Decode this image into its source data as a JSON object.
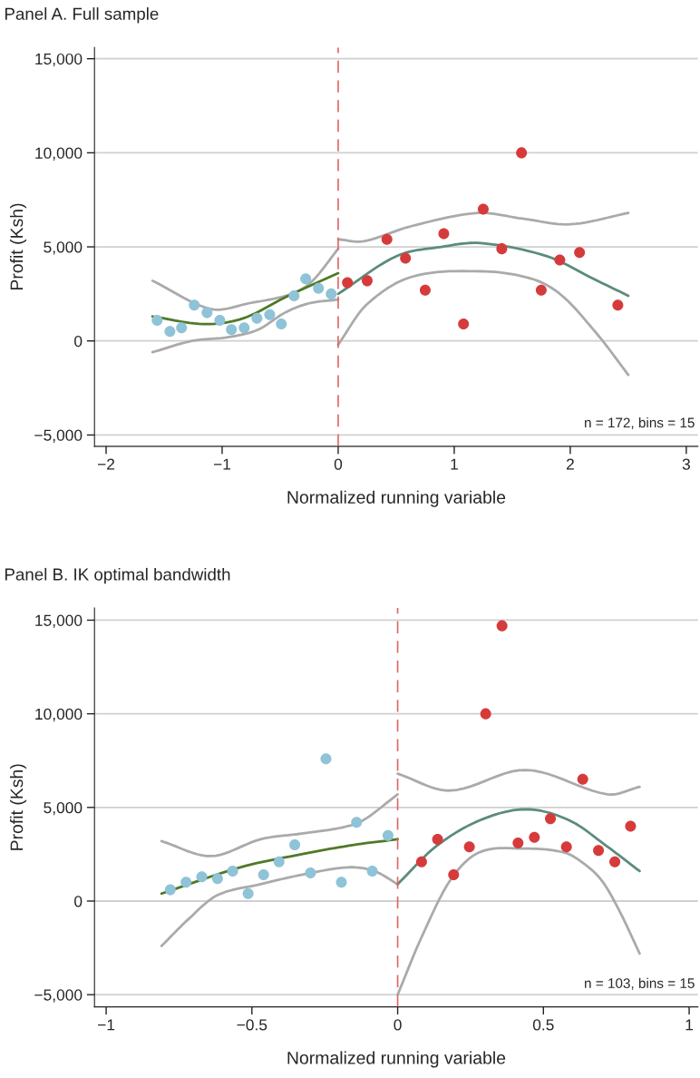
{
  "chart_data": [
    {
      "type": "scatter",
      "title": "Panel A. Full sample",
      "xlabel": "Normalized running variable",
      "ylabel": "Profit (Ksh)",
      "xlim": [
        -2.1,
        3.1
      ],
      "ylim": [
        -5600,
        15600
      ],
      "xticks": [
        {
          "value": -2,
          "label": "−2"
        },
        {
          "value": -1,
          "label": "−1"
        },
        0,
        1,
        2,
        3
      ],
      "yticks": [
        {
          "value": -5000,
          "label": "−5,000"
        },
        0,
        {
          "value": 5000,
          "label": "5,000"
        },
        {
          "value": 10000,
          "label": "10,000"
        },
        {
          "value": 15000,
          "label": "15,000"
        }
      ],
      "grid": "y",
      "tick_labels": "xy",
      "ref_lines": [
        {
          "axis": "x",
          "value": 0,
          "color": "#e06666",
          "line_style": "dashed"
        }
      ],
      "annotations": [
        "n = 172, bins = 15"
      ],
      "series": [
        {
          "type": "line",
          "marker": "none",
          "color": "#aaaaaa",
          "x": [
            -1.6,
            -1.1,
            -0.77,
            -0.4,
            -0.22,
            0
          ],
          "values": [
            3200,
            1700,
            2000,
            2500,
            3200,
            4900
          ]
        },
        {
          "type": "line",
          "marker": "none",
          "color": "#aaaaaa",
          "x": [
            -1.6,
            -1.26,
            -0.95,
            -0.69,
            -0.46,
            -0.25,
            0
          ],
          "values": [
            -600,
            0,
            200,
            600,
            1500,
            2000,
            2200
          ]
        },
        {
          "type": "line",
          "marker": "none",
          "color": "#aaaaaa",
          "x": [
            0,
            0.22,
            0.63,
            1.2,
            1.59,
            2.0,
            2.5
          ],
          "values": [
            5400,
            5300,
            6100,
            6800,
            6500,
            6200,
            6800
          ]
        },
        {
          "type": "line",
          "marker": "none",
          "color": "#aaaaaa",
          "x": [
            0,
            0.24,
            0.63,
            1.23,
            1.67,
            1.93,
            2.24,
            2.5
          ],
          "values": [
            -200,
            1900,
            3400,
            3700,
            3300,
            2400,
            300,
            -1800
          ]
        },
        {
          "type": "line",
          "marker": "none",
          "color": "#4f7a28",
          "x": [
            -1.6,
            -1.16,
            -0.82,
            -0.43,
            0
          ],
          "values": [
            1300,
            900,
            1200,
            2400,
            3600
          ]
        },
        {
          "type": "line",
          "marker": "none",
          "color": "#5b8c7c",
          "x": [
            0,
            0.5,
            0.89,
            1.23,
            1.8,
            2.2,
            2.5
          ],
          "values": [
            2500,
            4500,
            5000,
            5200,
            4500,
            3300,
            2400
          ]
        },
        {
          "marker": "circle",
          "color": "#8ec3d8",
          "x": [
            -1.56,
            -1.45,
            -1.35,
            -1.24,
            -1.13,
            -1.02,
            -0.92,
            -0.81,
            -0.7,
            -0.59,
            -0.49,
            -0.38,
            -0.28,
            -0.17,
            -0.06
          ],
          "values": [
            1100,
            500,
            700,
            1900,
            1500,
            1100,
            600,
            700,
            1200,
            1400,
            900,
            2400,
            3300,
            2800,
            2500
          ]
        },
        {
          "marker": "circle",
          "color": "#d63b3b",
          "x": [
            0.08,
            0.25,
            0.42,
            0.58,
            0.75,
            0.91,
            1.08,
            1.25,
            1.41,
            1.58,
            1.75,
            1.91,
            2.08,
            2.41
          ],
          "values": [
            3100,
            3200,
            5400,
            4400,
            2700,
            5700,
            900,
            7000,
            4900,
            10000,
            2700,
            4300,
            4700,
            1900
          ]
        }
      ]
    },
    {
      "type": "scatter",
      "title": "Panel B. IK optimal bandwidth",
      "xlabel": "Normalized running variable",
      "ylabel": "Profit (Ksh)",
      "xlim": [
        -1.04,
        1.03
      ],
      "ylim": [
        -5650,
        15650
      ],
      "xticks": [
        {
          "value": -1,
          "label": "−1"
        },
        {
          "value": -0.5,
          "label": "−0.5"
        },
        0,
        0.5,
        1
      ],
      "yticks": [
        {
          "value": -5000,
          "label": "−5,000"
        },
        0,
        {
          "value": 5000,
          "label": "5,000"
        },
        {
          "value": 10000,
          "label": "10,000"
        },
        {
          "value": 15000,
          "label": "15,000"
        }
      ],
      "grid": "y",
      "tick_labels": "xy",
      "ref_lines": [
        {
          "axis": "x",
          "value": 0,
          "color": "#e06666",
          "line_style": "dashed"
        }
      ],
      "annotations": [
        "n = 103, bins = 15"
      ],
      "series": [
        {
          "type": "line",
          "marker": "none",
          "color": "#aaaaaa",
          "x": [
            -0.81,
            -0.64,
            -0.47,
            -0.33,
            -0.2,
            -0.12,
            0
          ],
          "values": [
            3200,
            2400,
            3300,
            3600,
            3900,
            4300,
            5700
          ]
        },
        {
          "type": "line",
          "marker": "none",
          "color": "#aaaaaa",
          "x": [
            -0.81,
            -0.72,
            -0.62,
            -0.47,
            -0.33,
            -0.17,
            -0.08,
            0
          ],
          "values": [
            -2400,
            -1000,
            300,
            900,
            1400,
            1800,
            1600,
            900
          ]
        },
        {
          "type": "line",
          "marker": "none",
          "color": "#aaaaaa",
          "x": [
            0,
            0.18,
            0.44,
            0.72,
            0.83
          ],
          "values": [
            6800,
            5900,
            7000,
            5700,
            6100
          ]
        },
        {
          "type": "line",
          "marker": "none",
          "color": "#aaaaaa",
          "x": [
            0,
            0.08,
            0.18,
            0.28,
            0.44,
            0.57,
            0.63,
            0.7,
            0.76,
            0.83
          ],
          "values": [
            -5000,
            -2000,
            1100,
            2600,
            2800,
            2600,
            2100,
            1100,
            -500,
            -2800
          ]
        },
        {
          "type": "line",
          "marker": "none",
          "color": "#4f7a28",
          "x": [
            -0.81,
            -0.54,
            -0.33,
            -0.15,
            0
          ],
          "values": [
            400,
            1800,
            2500,
            3000,
            3300
          ]
        },
        {
          "type": "line",
          "marker": "none",
          "color": "#5b8c7c",
          "x": [
            0,
            0.13,
            0.28,
            0.44,
            0.59,
            0.72,
            0.83
          ],
          "values": [
            900,
            2900,
            4300,
            4900,
            4300,
            2900,
            1600
          ]
        },
        {
          "marker": "circle",
          "color": "#8ec3d8",
          "x": [
            -0.78,
            -0.726,
            -0.672,
            -0.618,
            -0.566,
            -0.513,
            -0.46,
            -0.407,
            -0.353,
            -0.299,
            -0.246,
            -0.193,
            -0.141,
            -0.087,
            -0.033
          ],
          "values": [
            600,
            1000,
            1300,
            1200,
            1600,
            400,
            1400,
            2100,
            3000,
            1500,
            7600,
            1000,
            4200,
            1600,
            3500
          ]
        },
        {
          "marker": "circle",
          "color": "#d63b3b",
          "x": [
            0.082,
            0.137,
            0.192,
            0.246,
            0.302,
            0.358,
            0.413,
            0.469,
            0.524,
            0.579,
            0.635,
            0.689,
            0.745,
            0.799
          ],
          "values": [
            2100,
            3300,
            1400,
            2900,
            10000,
            14700,
            3100,
            3400,
            4400,
            2900,
            6500,
            2700,
            2100,
            4000
          ]
        }
      ]
    }
  ]
}
